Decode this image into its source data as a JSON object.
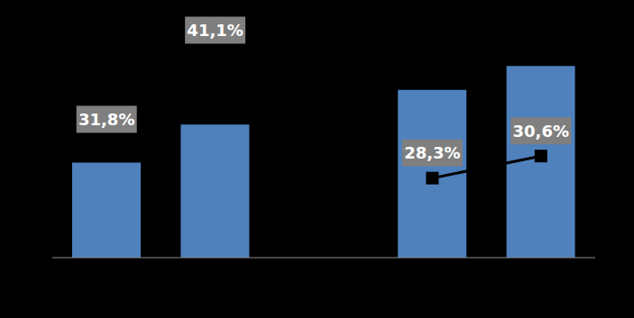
{
  "chart_data": {
    "type": "bar",
    "categories": [
      null,
      null,
      null,
      null,
      null
    ],
    "ylim": [
      0,
      29
    ],
    "yticks": [
      0,
      29
    ],
    "y2lim": [
      20,
      45
    ],
    "y2ticks": [
      20,
      45
    ],
    "tick_labels": false,
    "series": [
      {
        "type": "bar",
        "color": "#4f81bd",
        "values": [
          11.5,
          16.1,
          null,
          20.3,
          23.2
        ]
      },
      {
        "type": "line",
        "axis": "y2",
        "color": "#000000",
        "marker": "square",
        "data_labels": true,
        "values": [
          31.8,
          41.1,
          null,
          28.3,
          30.6
        ],
        "value_labels": [
          "31,8%",
          "41,1%",
          null,
          "28,3%",
          "30,6%"
        ]
      }
    ]
  }
}
